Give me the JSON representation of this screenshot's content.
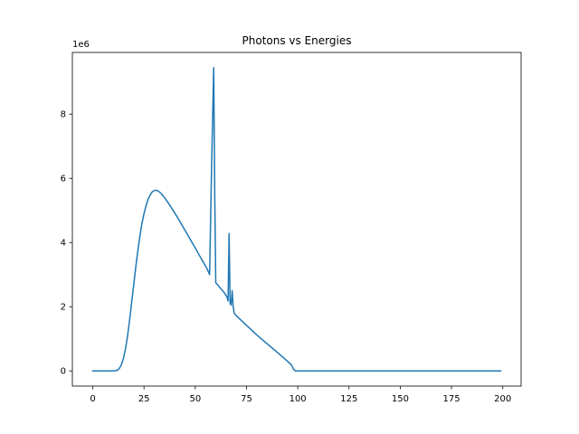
{
  "chart_data": {
    "type": "line",
    "title": "Photons vs Energies",
    "xlabel": "",
    "ylabel": "",
    "y_offset_label": "1e6",
    "xlim": [
      -9.95,
      208.95
    ],
    "ylim": [
      -0.4725,
      9.9225
    ],
    "x_ticks": [
      0,
      25,
      50,
      75,
      100,
      125,
      150,
      175,
      200
    ],
    "y_ticks": [
      0,
      2,
      4,
      6,
      8
    ],
    "grid": false,
    "legend": "none",
    "series": [
      {
        "color": "#1f77b4",
        "x": [
          0,
          10,
          12,
          13,
          14,
          15,
          16,
          17,
          18,
          19,
          20,
          21,
          22,
          23,
          24,
          25,
          26,
          27,
          28,
          29,
          30,
          31,
          32,
          33,
          34,
          35,
          36,
          38,
          40,
          42,
          44,
          46,
          48,
          50,
          52,
          54,
          56,
          57,
          58,
          59,
          59.5,
          60,
          62,
          64,
          65.5,
          66,
          66.5,
          67,
          67.5,
          68,
          68.5,
          69,
          70,
          75,
          80,
          85,
          90,
          95,
          97,
          98,
          99,
          100,
          110,
          125,
          150,
          175,
          199
        ],
        "y": [
          0,
          0,
          0.02,
          0.08,
          0.2,
          0.4,
          0.7,
          1.1,
          1.6,
          2.15,
          2.7,
          3.25,
          3.75,
          4.2,
          4.6,
          4.9,
          5.15,
          5.35,
          5.48,
          5.58,
          5.62,
          5.63,
          5.6,
          5.55,
          5.48,
          5.4,
          5.31,
          5.12,
          4.92,
          4.71,
          4.49,
          4.27,
          4.05,
          3.83,
          3.6,
          3.38,
          3.15,
          3.0,
          6.5,
          9.45,
          5.5,
          2.75,
          2.6,
          2.45,
          2.3,
          2.18,
          4.28,
          2.1,
          2.05,
          2.5,
          2.0,
          1.8,
          1.72,
          1.42,
          1.12,
          0.85,
          0.58,
          0.3,
          0.18,
          0.04,
          0,
          0,
          0,
          0,
          0,
          0,
          0
        ]
      }
    ]
  }
}
